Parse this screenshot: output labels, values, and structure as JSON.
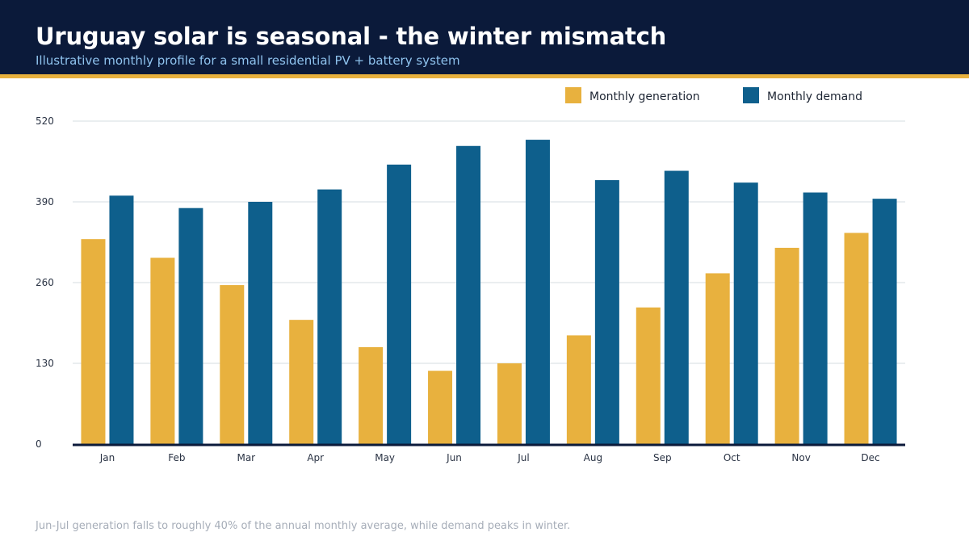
{
  "header": {
    "title": "Uruguay solar is seasonal - the winter mismatch",
    "subtitle": "Illustrative monthly profile for a small residential PV + battery system"
  },
  "footnote": "Jun-Jul generation falls to roughly 40% of the annual monthly average, while demand peaks in winter.",
  "colors": {
    "header_bg": "#0b1a3a",
    "accent": "#e8b13e",
    "generation": "#e8b13e",
    "demand": "#0e5f8c",
    "gridline": "#d6dde2",
    "axis": "#0b1a3a"
  },
  "chart_data": {
    "type": "bar",
    "categories": [
      "Jan",
      "Feb",
      "Mar",
      "Apr",
      "May",
      "Jun",
      "Jul",
      "Aug",
      "Sep",
      "Oct",
      "Nov",
      "Dec"
    ],
    "series": [
      {
        "name": "Monthly generation",
        "color": "#e8b13e",
        "values": [
          330,
          300,
          256,
          200,
          156,
          118,
          130,
          175,
          220,
          275,
          316,
          340
        ]
      },
      {
        "name": "Monthly demand",
        "color": "#0e5f8c",
        "values": [
          400,
          380,
          390,
          410,
          450,
          480,
          490,
          425,
          440,
          421,
          405,
          395
        ]
      }
    ],
    "ylim": [
      0,
      520
    ],
    "yticks": [
      0,
      130,
      260,
      390,
      520
    ],
    "grid": true,
    "legend_position": "top-right",
    "title": "",
    "xlabel": "",
    "ylabel": ""
  }
}
